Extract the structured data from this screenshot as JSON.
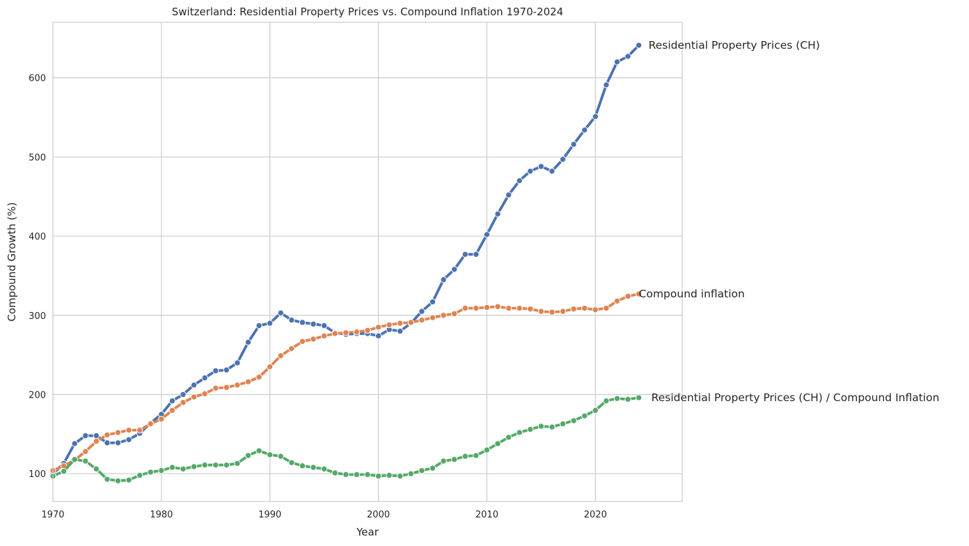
{
  "chart_data": {
    "type": "line",
    "title": "Switzerland: Residential Property Prices vs. Compound Inflation 1970-2024",
    "xlabel": "Year",
    "ylabel": "Compound Growth (%)",
    "xlim": [
      1970,
      2028
    ],
    "ylim": [
      65,
      670
    ],
    "xticks": [
      1970,
      1980,
      1990,
      2000,
      2010,
      2020
    ],
    "yticks": [
      100,
      200,
      300,
      400,
      500,
      600
    ],
    "grid": true,
    "legend": "none",
    "x": [
      1970,
      1971,
      1972,
      1973,
      1974,
      1975,
      1976,
      1977,
      1978,
      1979,
      1980,
      1981,
      1982,
      1983,
      1984,
      1985,
      1986,
      1987,
      1988,
      1989,
      1990,
      1991,
      1992,
      1993,
      1994,
      1995,
      1996,
      1997,
      1998,
      1999,
      2000,
      2001,
      2002,
      2003,
      2004,
      2005,
      2006,
      2007,
      2008,
      2009,
      2010,
      2011,
      2012,
      2013,
      2014,
      2015,
      2016,
      2017,
      2018,
      2019,
      2020,
      2021,
      2022,
      2023,
      2024
    ],
    "series": [
      {
        "name": "Residential Property Prices (CH)",
        "color": "#4c72b0",
        "values": [
          100,
          113,
          138,
          148,
          148,
          139,
          139,
          143,
          151,
          164,
          175,
          192,
          200,
          212,
          221,
          230,
          231,
          240,
          266,
          287,
          290,
          303,
          294,
          291,
          289,
          287,
          278,
          276,
          277,
          277,
          274,
          282,
          280,
          290,
          305,
          317,
          345,
          358,
          377,
          377,
          402,
          428,
          452,
          470,
          482,
          488,
          482,
          497,
          516,
          534,
          551,
          591,
          620,
          627,
          641
        ]
      },
      {
        "name": "Compound inflation",
        "color": "#dd8452",
        "values": [
          104,
          110,
          117,
          128,
          141,
          149,
          152,
          155,
          155,
          163,
          169,
          180,
          190,
          197,
          201,
          208,
          209,
          212,
          216,
          222,
          235,
          249,
          258,
          267,
          270,
          274,
          277,
          278,
          279,
          281,
          285,
          288,
          290,
          291,
          294,
          297,
          300,
          302,
          309,
          309,
          310,
          311,
          309,
          309,
          308,
          305,
          304,
          305,
          308,
          309,
          307,
          309,
          318,
          324,
          327
        ]
      },
      {
        "name": "Residential Property Prices (CH) / Compound Inflation",
        "color": "#55a868",
        "values": [
          97,
          103,
          118,
          116,
          106,
          93,
          91,
          92,
          98,
          102,
          104,
          108,
          106,
          109,
          111,
          111,
          111,
          113,
          123,
          129,
          124,
          122,
          114,
          110,
          108,
          106,
          101,
          99,
          99,
          99,
          97,
          98,
          97,
          100,
          104,
          107,
          116,
          118,
          122,
          123,
          130,
          138,
          146,
          152,
          156,
          160,
          159,
          163,
          167,
          173,
          180,
          192,
          195,
          194,
          196
        ]
      }
    ]
  }
}
